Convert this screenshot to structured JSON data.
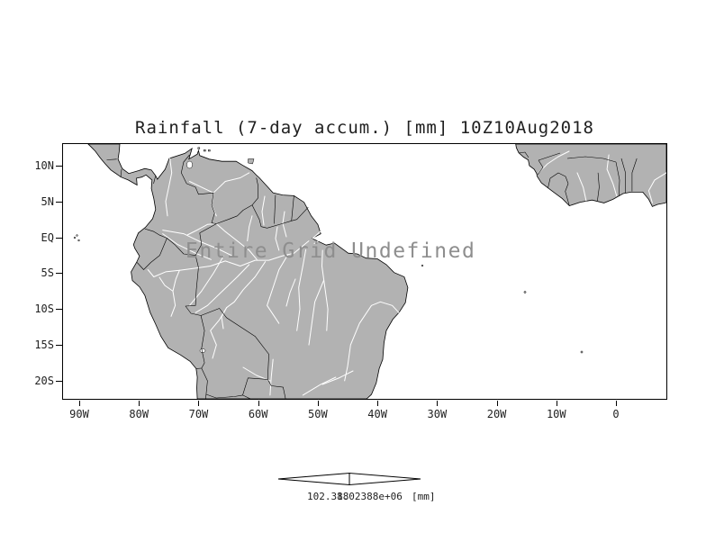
{
  "title": "Rainfall (7-day accum.) [mm] 10Z10Aug2018",
  "overlay_message": "Entire Grid Undefined",
  "map": {
    "lat_ticks": [
      {
        "label": "10N",
        "deg": 10
      },
      {
        "label": "5N",
        "deg": 5
      },
      {
        "label": "EQ",
        "deg": 0
      },
      {
        "label": "5S",
        "deg": -5
      },
      {
        "label": "10S",
        "deg": -10
      },
      {
        "label": "15S",
        "deg": -15
      },
      {
        "label": "20S",
        "deg": -20
      }
    ],
    "lon_ticks": [
      {
        "label": "90W",
        "deg": -90
      },
      {
        "label": "80W",
        "deg": -80
      },
      {
        "label": "70W",
        "deg": -70
      },
      {
        "label": "60W",
        "deg": -60
      },
      {
        "label": "50W",
        "deg": -50
      },
      {
        "label": "40W",
        "deg": -40
      },
      {
        "label": "30W",
        "deg": -30
      },
      {
        "label": "20W",
        "deg": -20
      },
      {
        "label": "10W",
        "deg": -10
      },
      {
        "label": "0",
        "deg": 0
      }
    ]
  },
  "colorbar": {
    "labels": [
      "102.388",
      "1.02388e+06"
    ],
    "units": "[mm]"
  },
  "colors": {
    "land": "#b2b2b2",
    "ocean": "#ffffff",
    "river": "#ffffff",
    "coast": "#000000",
    "annotation": "#1f1f1f",
    "overlay": "#8e8e8e"
  },
  "chart_data": {
    "type": "map",
    "title": "Rainfall (7-day accum.) [mm] 10Z10Aug2018",
    "variable": "Rainfall (7-day accumulation)",
    "units": "mm",
    "valid_time": "10Z10Aug2018",
    "status_message": "Entire Grid Undefined",
    "data_plotted": false,
    "lat_axis_ticks": [
      "10N",
      "5N",
      "EQ",
      "5S",
      "10S",
      "15S",
      "20S"
    ],
    "lon_axis_ticks": [
      "90W",
      "80W",
      "70W",
      "60W",
      "50W",
      "40W",
      "30W",
      "20W",
      "10W",
      "0"
    ],
    "colorbar_labels": [
      "102.388",
      "1.02388e+06"
    ]
  }
}
